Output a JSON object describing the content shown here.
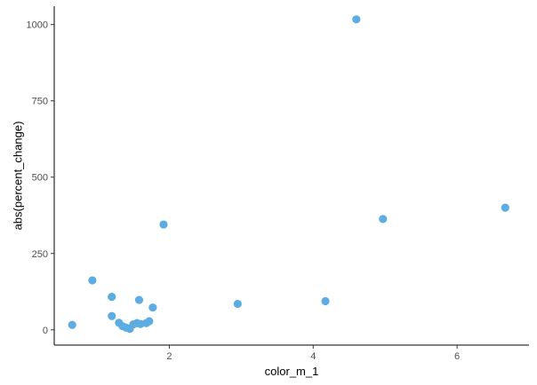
{
  "chart_data": {
    "type": "scatter",
    "title": "",
    "xlabel": "color_m_1",
    "ylabel": "abs(percent_change)",
    "xlim": [
      0.4,
      7.0
    ],
    "ylim": [
      -50,
      1060
    ],
    "xticks": [
      2,
      4,
      6
    ],
    "yticks": [
      0,
      250,
      500,
      750,
      1000
    ],
    "grid": false,
    "legend": "none",
    "point_color": "#5DADE2",
    "series": [
      {
        "points": [
          {
            "x": 0.65,
            "y": 16
          },
          {
            "x": 0.93,
            "y": 162
          },
          {
            "x": 1.2,
            "y": 108
          },
          {
            "x": 1.2,
            "y": 45
          },
          {
            "x": 1.3,
            "y": 23
          },
          {
            "x": 1.35,
            "y": 12
          },
          {
            "x": 1.4,
            "y": 7
          },
          {
            "x": 1.45,
            "y": 3
          },
          {
            "x": 1.5,
            "y": 18
          },
          {
            "x": 1.55,
            "y": 22
          },
          {
            "x": 1.58,
            "y": 98
          },
          {
            "x": 1.6,
            "y": 19
          },
          {
            "x": 1.68,
            "y": 22
          },
          {
            "x": 1.72,
            "y": 28
          },
          {
            "x": 1.77,
            "y": 73
          },
          {
            "x": 1.92,
            "y": 345
          },
          {
            "x": 2.95,
            "y": 85
          },
          {
            "x": 4.17,
            "y": 94
          },
          {
            "x": 4.6,
            "y": 1017
          },
          {
            "x": 4.97,
            "y": 363
          },
          {
            "x": 6.67,
            "y": 400
          }
        ]
      }
    ]
  }
}
